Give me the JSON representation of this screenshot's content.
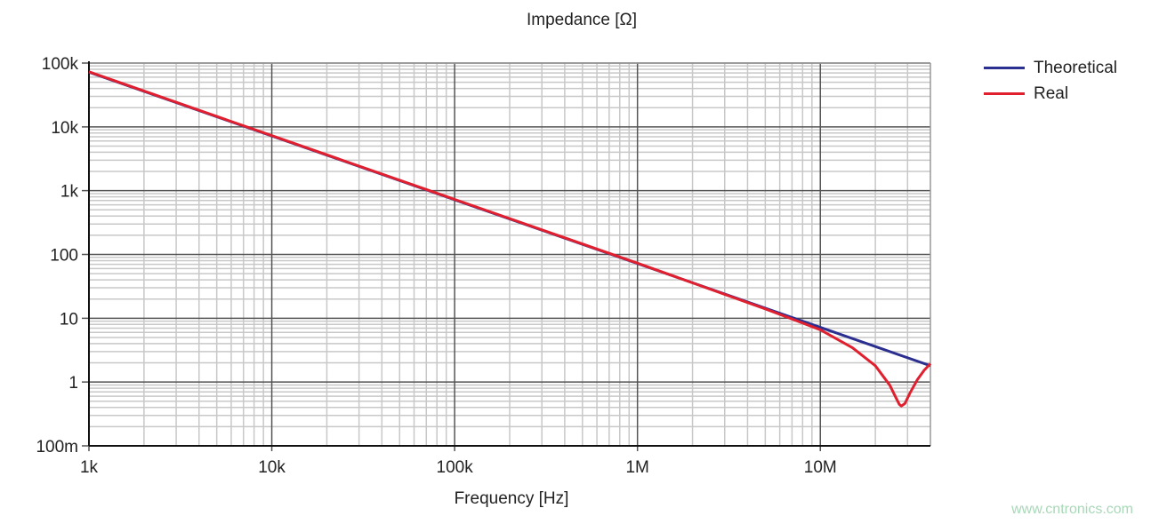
{
  "chart_data": {
    "type": "line",
    "title": "Impedance [Ω]",
    "xlabel": "Frequency [Hz]",
    "ylabel": "",
    "xscale": "log",
    "yscale": "log",
    "xlim": [
      1000,
      40000000
    ],
    "ylim": [
      0.1,
      100000
    ],
    "x_ticks": [
      1000,
      10000,
      100000,
      1000000,
      10000000
    ],
    "x_tick_labels": [
      "1k",
      "10k",
      "100k",
      "1M",
      "10M"
    ],
    "y_ticks": [
      100000,
      10000,
      1000,
      100,
      10,
      1,
      0.1
    ],
    "y_tick_labels": [
      "100k",
      "10k",
      "1k",
      "100",
      "10",
      "1",
      "100m"
    ],
    "grid": true,
    "legend_position": "top-right (outside)",
    "series": [
      {
        "name": "Theoretical",
        "color": "#2b2f8f",
        "x": [
          1000,
          10000,
          100000,
          1000000,
          10000000,
          20000000,
          40000000
        ],
        "y": [
          72000,
          7200,
          720,
          72,
          7.2,
          3.6,
          1.8
        ]
      },
      {
        "name": "Real",
        "color": "#e0202e",
        "x": [
          1000,
          10000,
          100000,
          1000000,
          5000000,
          10000000,
          15000000,
          20000000,
          24000000,
          26000000,
          27000000,
          27700000,
          29000000,
          31000000,
          34000000,
          37000000,
          40000000
        ],
        "y": [
          73000,
          7300,
          730,
          73,
          14,
          6.6,
          3.44,
          1.8,
          0.89,
          0.56,
          0.45,
          0.42,
          0.46,
          0.68,
          1.1,
          1.53,
          1.94
        ]
      }
    ]
  },
  "watermark": "www.cntronics.com"
}
